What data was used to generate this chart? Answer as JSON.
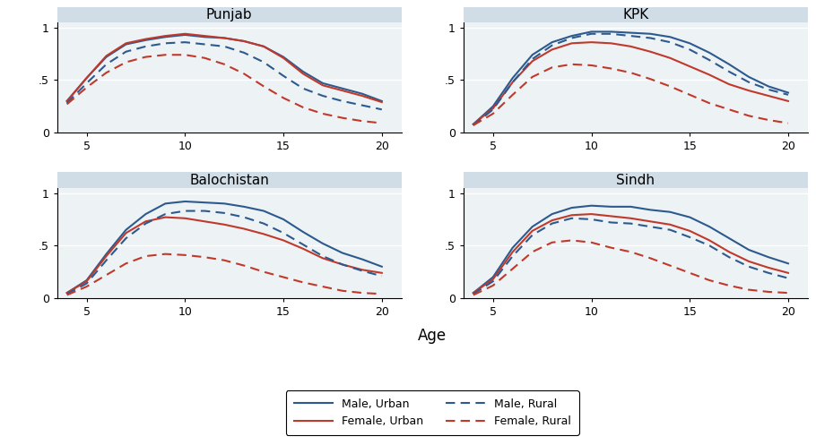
{
  "age": [
    4,
    5,
    6,
    7,
    8,
    9,
    10,
    11,
    12,
    13,
    14,
    15,
    16,
    17,
    18,
    19,
    20
  ],
  "provinces": [
    "Punjab",
    "KPK",
    "Balochistan",
    "Sindh"
  ],
  "title_bg_color": "#d0dde6",
  "plot_bg_color": "#edf2f5",
  "grid_color": "#ffffff",
  "male_urban_color": "#2d5a8e",
  "female_urban_color": "#c0392b",
  "Punjab": {
    "male_urban": [
      0.3,
      0.52,
      0.72,
      0.84,
      0.88,
      0.91,
      0.93,
      0.91,
      0.9,
      0.87,
      0.82,
      0.72,
      0.58,
      0.47,
      0.42,
      0.37,
      0.3
    ],
    "female_urban": [
      0.3,
      0.52,
      0.73,
      0.85,
      0.89,
      0.92,
      0.94,
      0.92,
      0.9,
      0.87,
      0.82,
      0.71,
      0.56,
      0.45,
      0.4,
      0.35,
      0.29
    ],
    "male_rural": [
      0.28,
      0.47,
      0.65,
      0.77,
      0.82,
      0.85,
      0.86,
      0.84,
      0.82,
      0.76,
      0.67,
      0.54,
      0.42,
      0.35,
      0.3,
      0.26,
      0.22
    ],
    "female_rural": [
      0.27,
      0.43,
      0.57,
      0.67,
      0.72,
      0.74,
      0.74,
      0.71,
      0.65,
      0.56,
      0.44,
      0.33,
      0.24,
      0.18,
      0.14,
      0.11,
      0.09
    ]
  },
  "KPK": {
    "male_urban": [
      0.08,
      0.25,
      0.52,
      0.74,
      0.86,
      0.92,
      0.96,
      0.96,
      0.95,
      0.94,
      0.91,
      0.85,
      0.76,
      0.65,
      0.53,
      0.44,
      0.38
    ],
    "female_urban": [
      0.08,
      0.23,
      0.48,
      0.68,
      0.79,
      0.85,
      0.86,
      0.85,
      0.82,
      0.77,
      0.71,
      0.63,
      0.55,
      0.46,
      0.4,
      0.35,
      0.3
    ],
    "male_rural": [
      0.07,
      0.22,
      0.48,
      0.7,
      0.83,
      0.9,
      0.94,
      0.94,
      0.92,
      0.9,
      0.86,
      0.79,
      0.69,
      0.58,
      0.48,
      0.41,
      0.36
    ],
    "female_rural": [
      0.07,
      0.18,
      0.36,
      0.53,
      0.62,
      0.65,
      0.64,
      0.61,
      0.57,
      0.51,
      0.44,
      0.36,
      0.28,
      0.22,
      0.16,
      0.12,
      0.09
    ]
  },
  "Balochistan": {
    "male_urban": [
      0.05,
      0.17,
      0.42,
      0.65,
      0.8,
      0.9,
      0.92,
      0.91,
      0.9,
      0.87,
      0.83,
      0.75,
      0.63,
      0.52,
      0.43,
      0.37,
      0.3
    ],
    "female_urban": [
      0.05,
      0.16,
      0.4,
      0.62,
      0.73,
      0.77,
      0.76,
      0.73,
      0.7,
      0.66,
      0.61,
      0.55,
      0.47,
      0.38,
      0.32,
      0.27,
      0.24
    ],
    "male_rural": [
      0.04,
      0.14,
      0.36,
      0.57,
      0.71,
      0.8,
      0.83,
      0.83,
      0.81,
      0.77,
      0.71,
      0.62,
      0.51,
      0.4,
      0.32,
      0.26,
      0.21
    ],
    "female_rural": [
      0.03,
      0.11,
      0.22,
      0.33,
      0.4,
      0.42,
      0.41,
      0.39,
      0.36,
      0.31,
      0.25,
      0.2,
      0.15,
      0.11,
      0.07,
      0.05,
      0.04
    ]
  },
  "Sindh": {
    "male_urban": [
      0.05,
      0.2,
      0.48,
      0.68,
      0.8,
      0.86,
      0.88,
      0.87,
      0.87,
      0.84,
      0.82,
      0.77,
      0.68,
      0.57,
      0.46,
      0.39,
      0.33
    ],
    "female_urban": [
      0.05,
      0.18,
      0.44,
      0.64,
      0.74,
      0.79,
      0.8,
      0.78,
      0.76,
      0.73,
      0.7,
      0.64,
      0.55,
      0.44,
      0.35,
      0.29,
      0.24
    ],
    "male_rural": [
      0.04,
      0.16,
      0.4,
      0.6,
      0.71,
      0.76,
      0.75,
      0.72,
      0.71,
      0.68,
      0.65,
      0.58,
      0.5,
      0.39,
      0.3,
      0.24,
      0.19
    ],
    "female_rural": [
      0.03,
      0.12,
      0.28,
      0.44,
      0.53,
      0.55,
      0.53,
      0.48,
      0.44,
      0.38,
      0.31,
      0.24,
      0.17,
      0.12,
      0.08,
      0.06,
      0.05
    ]
  },
  "xlabel": "Age",
  "ylim": [
    0,
    1.05
  ],
  "yticks": [
    0,
    0.5,
    1
  ],
  "ytick_labels": [
    "0",
    ".5",
    "1"
  ],
  "xticks": [
    5,
    10,
    15,
    20
  ],
  "xlim": [
    3.5,
    21.0
  ]
}
